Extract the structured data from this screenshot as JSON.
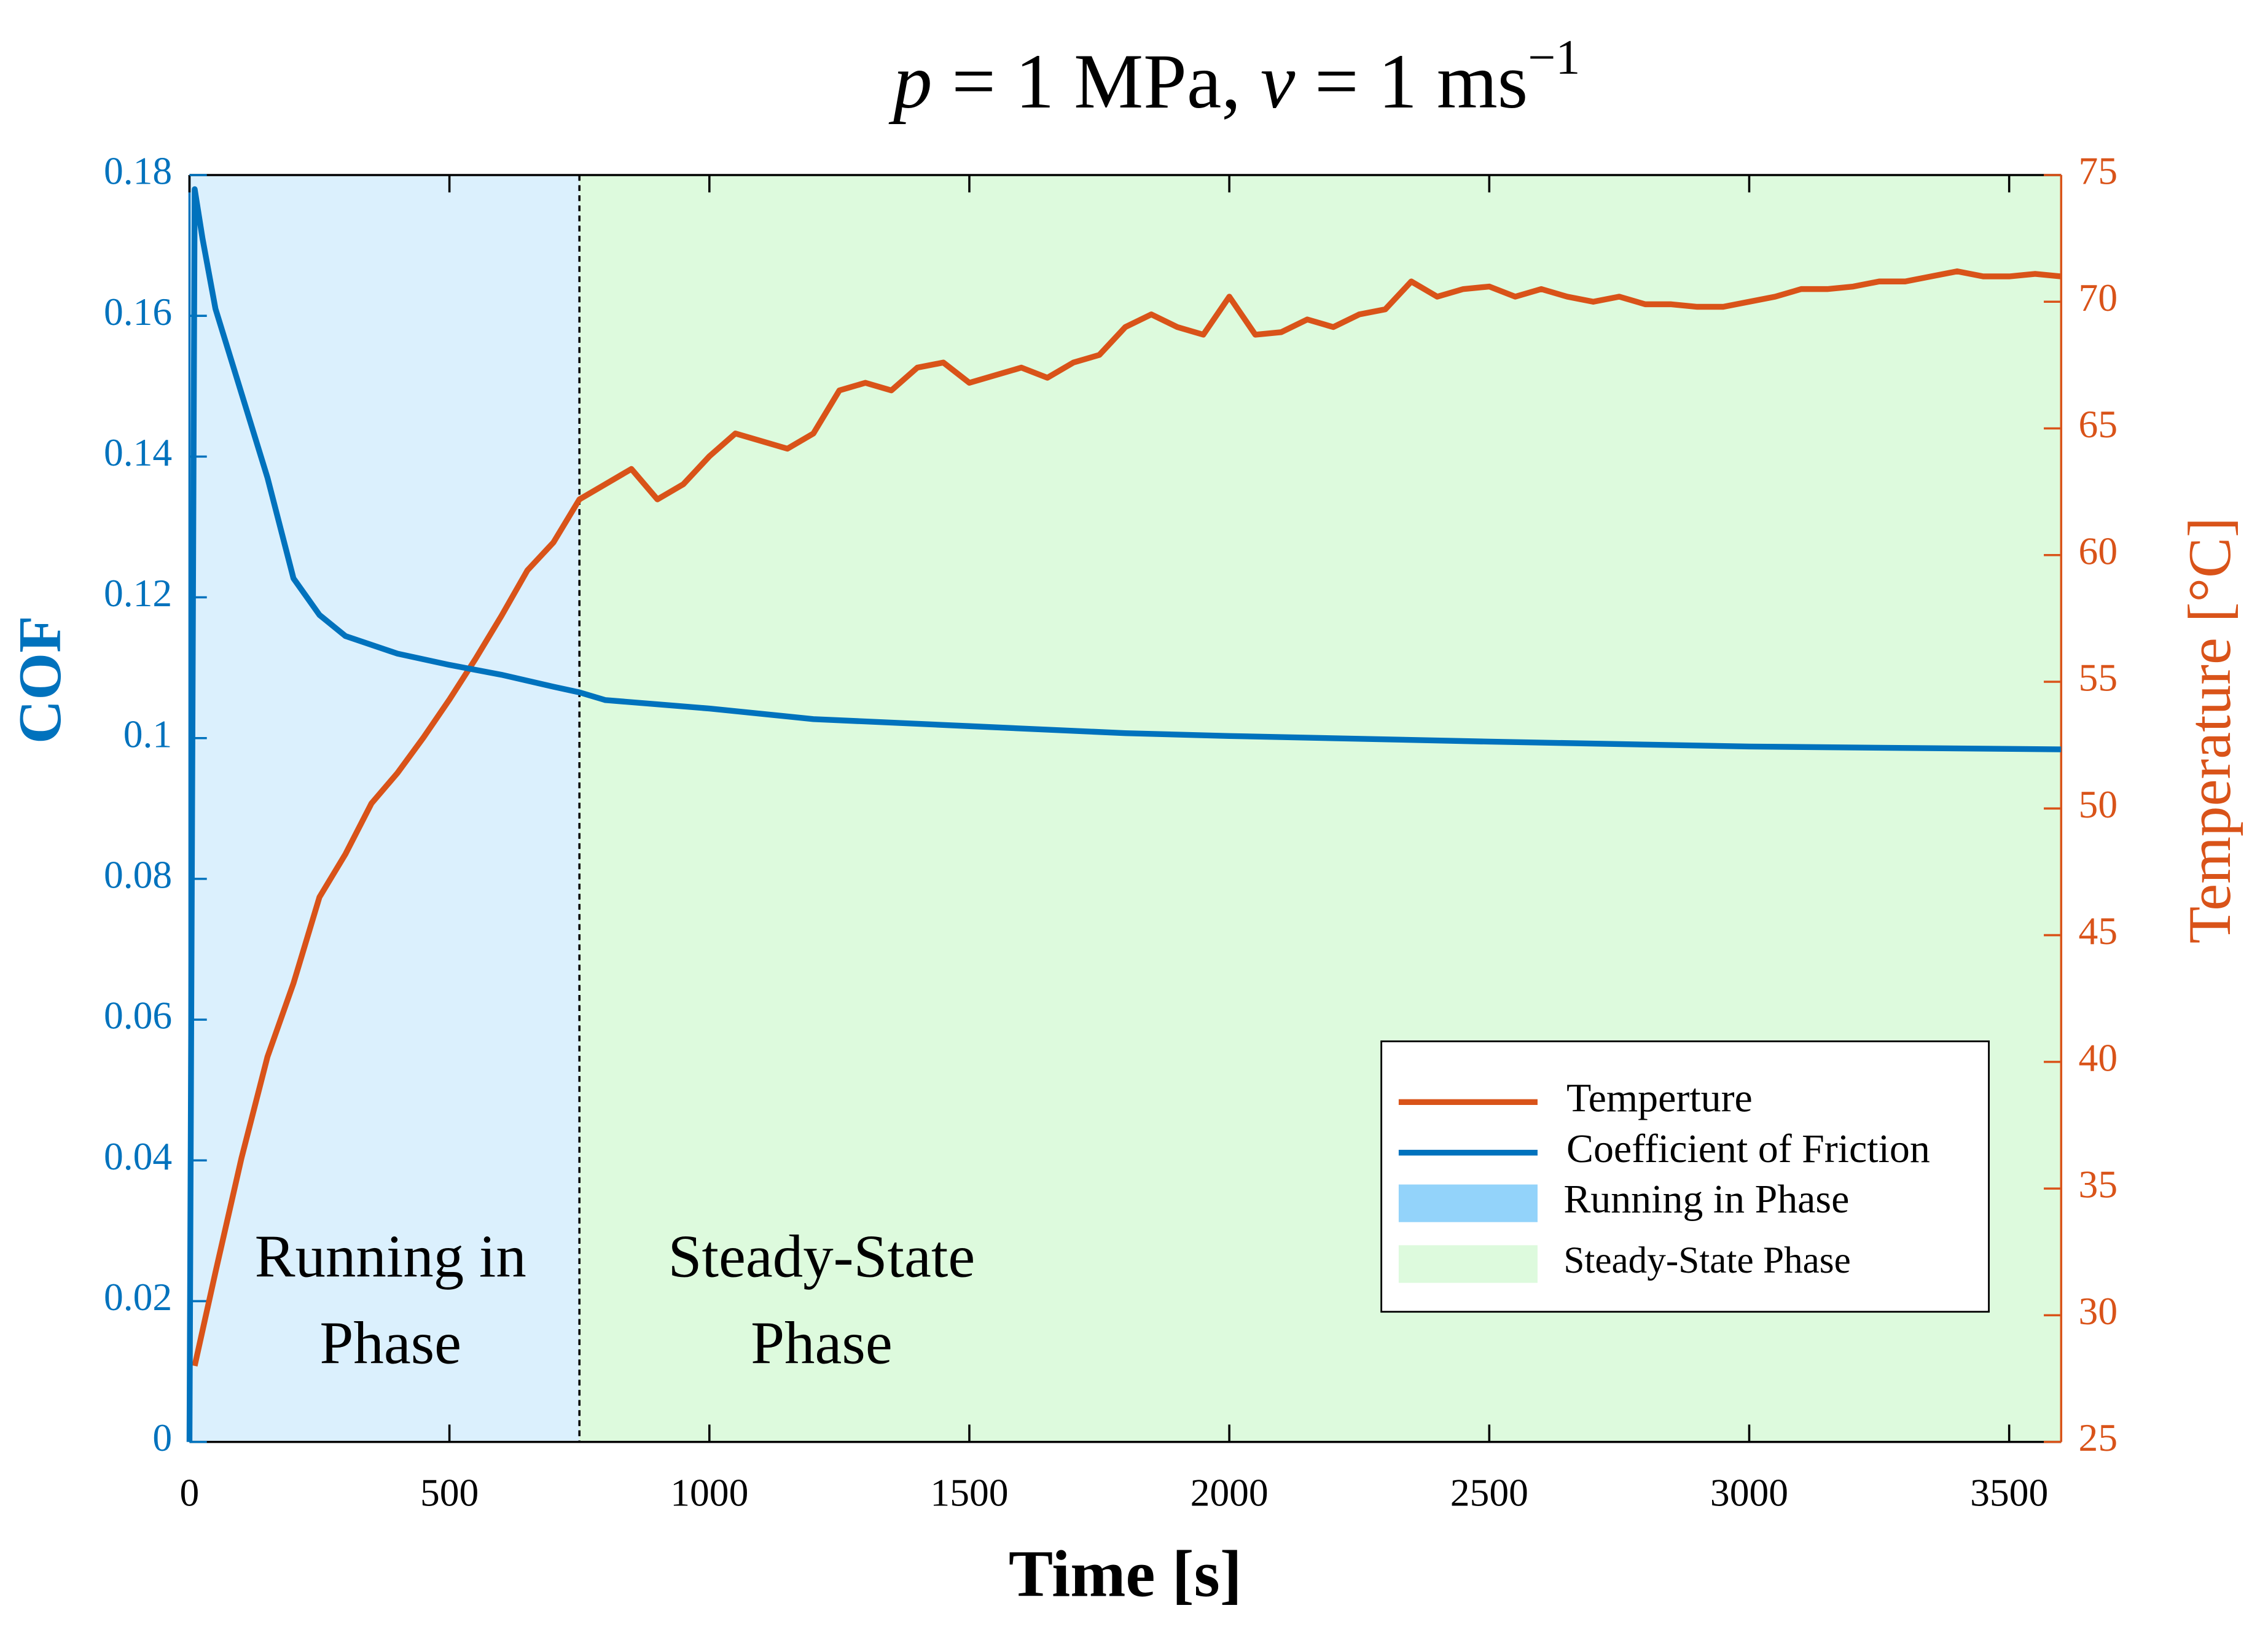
{
  "chart_data": {
    "type": "line",
    "title": [
      "p",
      " = 1 MPa, ",
      "v",
      " = 1 ms",
      "−1"
    ],
    "x_label": "Time [s]",
    "y_label": "COF",
    "y2_label": "Temperature [°C]",
    "xlim": [
      0,
      3600
    ],
    "xticks": [
      0,
      500,
      1000,
      1500,
      2000,
      2500,
      3000,
      3500
    ],
    "ylim": [
      0,
      0.18
    ],
    "yticks": [
      0,
      0.02,
      0.04,
      0.06,
      0.08,
      0.1,
      0.12,
      0.14,
      0.16,
      0.18
    ],
    "y2lim": [
      25,
      75
    ],
    "y2ticks": [
      25,
      30,
      35,
      40,
      45,
      50,
      55,
      60,
      65,
      70,
      75
    ],
    "legend": "lower right",
    "regions": [
      {
        "name": "Running in Phase",
        "start": 0,
        "end": 750,
        "color": "#87cefa",
        "label": [
          "Running in",
          "Phase"
        ]
      },
      {
        "name": "Steady-State Phase",
        "start": 750,
        "end": 3600,
        "color": "#90ee90",
        "label": [
          "Steady-State",
          "Phase"
        ]
      }
    ],
    "series": [
      {
        "name": "Temperture",
        "color": "#d95319",
        "axis": "y2",
        "x": [
          10,
          50,
          100,
          150,
          200,
          250,
          300,
          350,
          400,
          450,
          500,
          550,
          600,
          650,
          700,
          750,
          800,
          850,
          900,
          950,
          1000,
          1050,
          1100,
          1150,
          1200,
          1250,
          1300,
          1350,
          1400,
          1450,
          1500,
          1550,
          1600,
          1650,
          1700,
          1750,
          1800,
          1850,
          1900,
          1950,
          2000,
          2050,
          2100,
          2150,
          2200,
          2250,
          2300,
          2350,
          2400,
          2450,
          2500,
          2550,
          2600,
          2650,
          2700,
          2750,
          2800,
          2850,
          2900,
          2950,
          3000,
          3050,
          3100,
          3150,
          3200,
          3250,
          3300,
          3350,
          3400,
          3450,
          3500,
          3550,
          3600
        ],
        "values": [
          28,
          31.7,
          36.2,
          40.2,
          43.1,
          46.5,
          48.2,
          50.2,
          51.4,
          52.8,
          54.3,
          55.9,
          57.6,
          59.4,
          60.5,
          62.2,
          62.8,
          63.4,
          62.2,
          62.8,
          63.9,
          64.8,
          64.5,
          64.2,
          64.8,
          66.5,
          66.8,
          66.5,
          67.4,
          67.6,
          66.8,
          67.1,
          67.4,
          67,
          67.6,
          67.9,
          69,
          69.5,
          69,
          68.7,
          70.2,
          68.7,
          68.8,
          69.3,
          69,
          69.5,
          69.7,
          70.8,
          70.2,
          70.5,
          70.6,
          70.2,
          70.5,
          70.2,
          70,
          70.2,
          69.9,
          69.9,
          69.8,
          69.8,
          70,
          70.2,
          70.5,
          70.5,
          70.6,
          70.8,
          70.8,
          71,
          71.2,
          71,
          71,
          71.1,
          71
        ]
      },
      {
        "name": "Coefficient of Friction",
        "color": "#0072bd",
        "x": [
          0,
          10,
          25,
          50,
          100,
          150,
          200,
          250,
          300,
          400,
          500,
          600,
          700,
          750,
          800,
          1000,
          1200,
          1500,
          1800,
          2000,
          2500,
          3000,
          3600
        ],
        "values": [
          0,
          0.178,
          0.171,
          0.161,
          0.149,
          0.137,
          0.1227,
          0.1175,
          0.1145,
          0.112,
          0.1104,
          0.109,
          0.1073,
          0.1065,
          0.1054,
          0.1042,
          0.1027,
          0.1017,
          0.1007,
          0.1003,
          0.0995,
          0.0988,
          0.0984
        ]
      }
    ]
  }
}
